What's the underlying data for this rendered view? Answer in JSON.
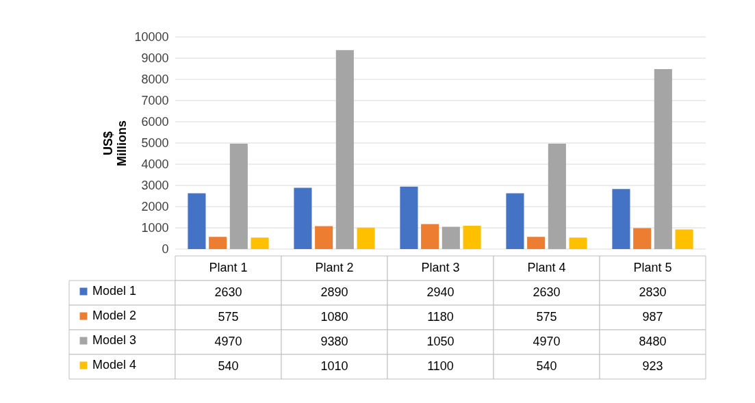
{
  "chart_data": {
    "type": "bar",
    "ylabel": "US$ Millions",
    "categories": [
      "Plant 1",
      "Plant 2",
      "Plant 3",
      "Plant 4",
      "Plant 5"
    ],
    "series": [
      {
        "name": "Model 1",
        "color": "#4472c4",
        "values": [
          2630,
          2890,
          2940,
          2630,
          2830
        ]
      },
      {
        "name": "Model 2",
        "color": "#ed7d31",
        "values": [
          575,
          1080,
          1180,
          575,
          987
        ]
      },
      {
        "name": "Model 3",
        "color": "#a5a5a5",
        "values": [
          4970,
          9380,
          1050,
          4970,
          8480
        ]
      },
      {
        "name": "Model 4",
        "color": "#ffc000",
        "values": [
          540,
          1010,
          1100,
          540,
          923
        ]
      }
    ],
    "ylim": [
      0,
      10000
    ],
    "yticks": [
      0,
      1000,
      2000,
      3000,
      4000,
      5000,
      6000,
      7000,
      8000,
      9000,
      10000
    ],
    "grid": "y",
    "legend": "bottom",
    "data_labels": true
  }
}
